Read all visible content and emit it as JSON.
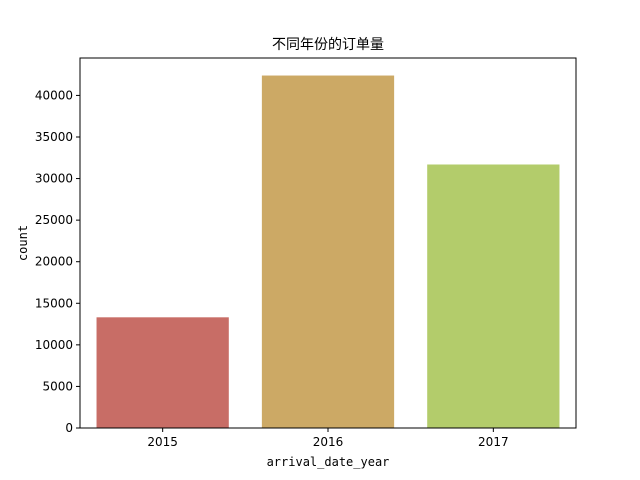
{
  "chart_data": {
    "type": "bar",
    "title": "不同年份的订单量",
    "xlabel": "arrival_date_year",
    "ylabel": "count",
    "categories": [
      "2015",
      "2016",
      "2017"
    ],
    "values": [
      13313,
      42391,
      31692
    ],
    "colors": [
      "#c86d66",
      "#cca965",
      "#b3cc6b"
    ],
    "ylim": [
      0,
      44500
    ],
    "yticks": [
      0,
      5000,
      10000,
      15000,
      20000,
      25000,
      30000,
      35000,
      40000
    ],
    "grid": false,
    "legend": "none"
  }
}
